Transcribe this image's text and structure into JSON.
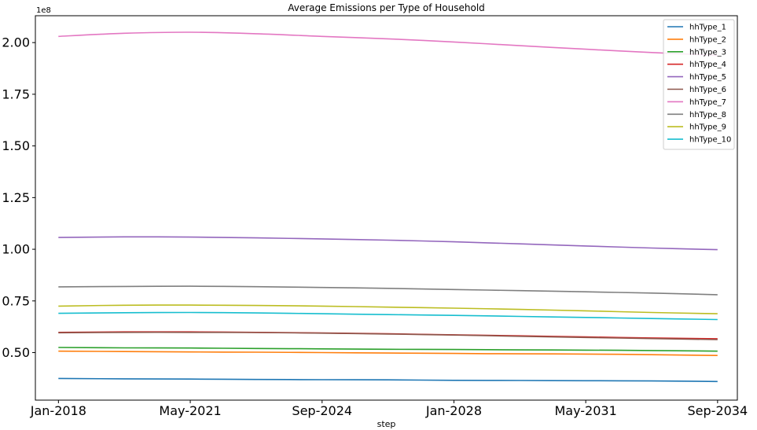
{
  "chart_data": {
    "type": "line",
    "title": "Average Emissions per Type of Household",
    "xlabel": "step",
    "ylabel": "",
    "y_offset_label": "1e8",
    "x_tick_labels": [
      "Jan-2018",
      "May-2021",
      "Sep-2024",
      "Jan-2028",
      "May-2031",
      "Sep-2034"
    ],
    "x_tick_dates": [
      "2018-01",
      "2021-05",
      "2024-09",
      "2028-01",
      "2031-05",
      "2034-09"
    ],
    "y_ticks": [
      0.5,
      0.75,
      1.0,
      1.25,
      1.5,
      1.75,
      2.0
    ],
    "y_tick_labels": [
      "0.50",
      "0.75",
      "1.00",
      "1.25",
      "1.50",
      "1.75",
      "2.00"
    ],
    "ylim": [
      0.27,
      2.13
    ],
    "xlim": [
      "2017-06",
      "2035-03"
    ],
    "grid": false,
    "legend_position": "top-right",
    "x": [
      "2018-01",
      "2019-09",
      "2021-05",
      "2023-01",
      "2024-09",
      "2026-05",
      "2028-01",
      "2029-09",
      "2031-05",
      "2033-01",
      "2034-09"
    ],
    "series": [
      {
        "name": "hhType_1",
        "color": "#1f77b4",
        "values": [
          0.375,
          0.373,
          0.372,
          0.37,
          0.369,
          0.368,
          0.366,
          0.365,
          0.364,
          0.363,
          0.36
        ]
      },
      {
        "name": "hhType_2",
        "color": "#ff7f0e",
        "values": [
          0.507,
          0.505,
          0.503,
          0.502,
          0.5,
          0.498,
          0.496,
          0.494,
          0.493,
          0.49,
          0.486
        ]
      },
      {
        "name": "hhType_3",
        "color": "#2ca02c",
        "values": [
          0.525,
          0.523,
          0.522,
          0.52,
          0.518,
          0.516,
          0.515,
          0.513,
          0.512,
          0.51,
          0.507
        ]
      },
      {
        "name": "hhType_4",
        "color": "#d62728",
        "values": [
          0.598,
          0.6,
          0.6,
          0.598,
          0.595,
          0.591,
          0.586,
          0.581,
          0.576,
          0.571,
          0.567
        ]
      },
      {
        "name": "hhType_5",
        "color": "#9467bd",
        "values": [
          1.057,
          1.06,
          1.059,
          1.055,
          1.05,
          1.044,
          1.036,
          1.026,
          1.016,
          1.006,
          0.998
        ]
      },
      {
        "name": "hhType_6",
        "color": "#8c564b",
        "values": [
          0.596,
          0.598,
          0.598,
          0.597,
          0.594,
          0.59,
          0.585,
          0.579,
          0.573,
          0.568,
          0.563
        ]
      },
      {
        "name": "hhType_7",
        "color": "#e377c2",
        "values": [
          2.03,
          2.045,
          2.05,
          2.043,
          2.03,
          2.018,
          2.003,
          1.985,
          1.968,
          1.952,
          1.938
        ]
      },
      {
        "name": "hhType_8",
        "color": "#7f7f7f",
        "values": [
          0.818,
          0.82,
          0.821,
          0.819,
          0.815,
          0.811,
          0.805,
          0.8,
          0.794,
          0.788,
          0.78
        ]
      },
      {
        "name": "hhType_9",
        "color": "#bcbd22",
        "values": [
          0.725,
          0.729,
          0.73,
          0.728,
          0.725,
          0.72,
          0.715,
          0.709,
          0.702,
          0.694,
          0.688
        ]
      },
      {
        "name": "hhType_10",
        "color": "#17becf",
        "values": [
          0.69,
          0.693,
          0.694,
          0.692,
          0.688,
          0.684,
          0.68,
          0.675,
          0.67,
          0.665,
          0.66
        ]
      }
    ]
  }
}
